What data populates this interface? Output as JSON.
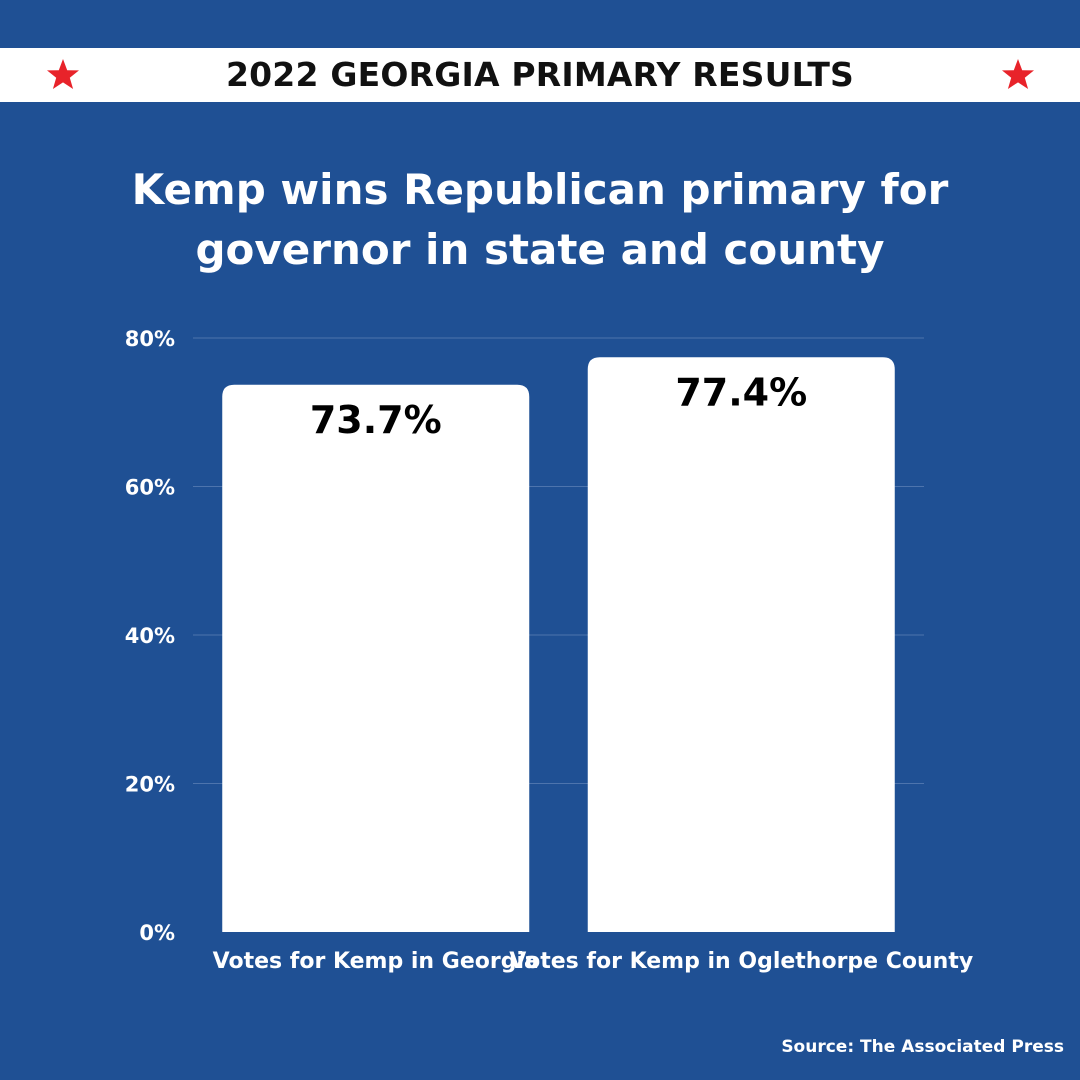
{
  "banner": {
    "title": "2022 GEORGIA PRIMARY RESULTS",
    "star_color": "#e8232a",
    "background": "#ffffff"
  },
  "headline": "Kemp wins Republican primary for governor in state and county",
  "source": "Source: The Associated Press",
  "colors": {
    "background": "#1f5094",
    "bar": "#ffffff",
    "gridline": "#4d74ad",
    "text": "#ffffff",
    "value_label": "#000000"
  },
  "chart_data": {
    "type": "bar",
    "categories": [
      "Votes for Kemp in Georgia",
      "Votes for Kemp in Oglethorpe County"
    ],
    "values": [
      73.7,
      77.4
    ],
    "value_labels": [
      "73.7%",
      "77.4%"
    ],
    "title": "",
    "xlabel": "",
    "ylabel": "",
    "ylim": [
      0,
      80
    ],
    "yticks": [
      0,
      20,
      40,
      60,
      80
    ],
    "ytick_labels": [
      "0%",
      "20%",
      "40%",
      "60%",
      "80%"
    ],
    "grid": true,
    "legend": "none"
  }
}
